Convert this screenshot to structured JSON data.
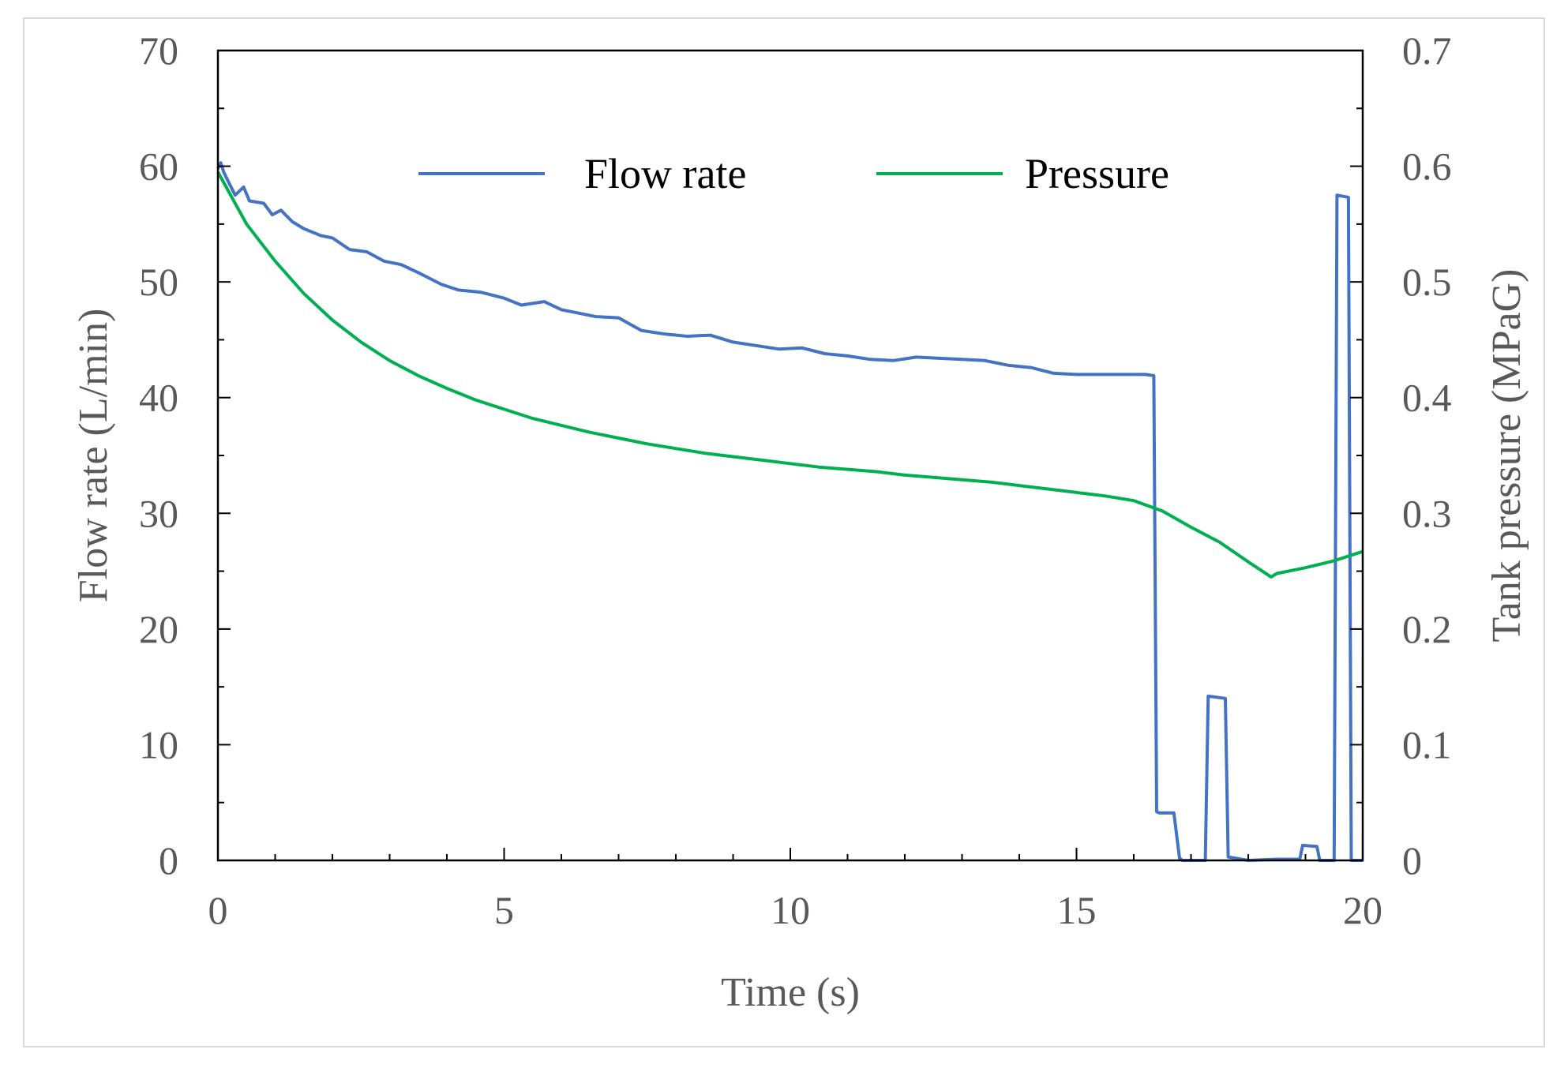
{
  "chart_data": {
    "type": "line",
    "title": "",
    "xlabel": "Time  (s)",
    "ylabel_left": "Flow rate  (L/min)",
    "ylabel_right": "Tank pressure  (MPaG)",
    "xlim": [
      0,
      20
    ],
    "ylim_left": [
      0,
      70
    ],
    "ylim_right": [
      0,
      0.7
    ],
    "x_ticks": [
      "0",
      "5",
      "10",
      "15",
      "20"
    ],
    "y_left_ticks": [
      "0",
      "10",
      "20",
      "30",
      "40",
      "50",
      "60",
      "70"
    ],
    "y_right_ticks": [
      "0",
      "0.1",
      "0.2",
      "0.3",
      "0.4",
      "0.5",
      "0.6",
      "0.7"
    ],
    "grid": false,
    "legend_position": "top-center",
    "series": [
      {
        "name": "Flow rate",
        "axis": "left",
        "color": "#4472c4",
        "x": [
          0,
          0.05,
          0.1,
          0.2,
          0.3,
          0.45,
          0.55,
          0.8,
          0.95,
          1.1,
          1.3,
          1.5,
          1.8,
          2.0,
          2.3,
          2.6,
          2.9,
          3.2,
          3.5,
          3.9,
          4.2,
          4.6,
          5.0,
          5.3,
          5.7,
          6.0,
          6.3,
          6.6,
          7.0,
          7.4,
          7.8,
          8.2,
          8.6,
          9.0,
          9.4,
          9.8,
          10.2,
          10.6,
          11.0,
          11.4,
          11.8,
          12.2,
          12.6,
          13.0,
          13.4,
          13.8,
          14.2,
          14.6,
          15.0,
          15.4,
          15.8,
          16.2,
          16.35,
          16.4,
          16.45,
          16.7,
          16.8,
          16.85,
          17.25,
          17.3,
          17.6,
          17.65,
          18.0,
          18.5,
          18.9,
          18.95,
          19.2,
          19.25,
          19.5,
          19.55,
          19.75,
          19.8,
          19.9,
          20.0
        ],
        "values": [
          59.8,
          60.3,
          59.5,
          58.5,
          57.5,
          58.2,
          57.0,
          56.8,
          55.8,
          56.2,
          55.2,
          54.6,
          54.0,
          53.8,
          52.8,
          52.6,
          51.8,
          51.5,
          50.8,
          49.8,
          49.3,
          49.1,
          48.6,
          48.0,
          48.3,
          47.6,
          47.3,
          47.0,
          46.9,
          45.8,
          45.5,
          45.3,
          45.4,
          44.8,
          44.5,
          44.2,
          44.3,
          43.8,
          43.6,
          43.3,
          43.2,
          43.5,
          43.4,
          43.3,
          43.2,
          42.8,
          42.6,
          42.1,
          42.0,
          42.0,
          42.0,
          42.0,
          41.9,
          4.2,
          4.1,
          4.1,
          0.2,
          0.0,
          0.0,
          14.2,
          14.0,
          0.3,
          0.0,
          0.1,
          0.1,
          1.3,
          1.2,
          0.0,
          0.0,
          57.5,
          57.3,
          0.0,
          0.0,
          0.0
        ]
      },
      {
        "name": "Pressure",
        "axis": "right",
        "color": "#00b050",
        "x": [
          0,
          0.5,
          1,
          1.5,
          2,
          2.5,
          3,
          3.5,
          4,
          4.5,
          5,
          5.5,
          6,
          6.5,
          7,
          7.5,
          8,
          8.5,
          9,
          9.5,
          10,
          10.5,
          11,
          11.5,
          12,
          12.5,
          13,
          13.5,
          14,
          14.5,
          15,
          15.5,
          16,
          16.5,
          17,
          17.5,
          18,
          18.4,
          18.5,
          19,
          19.5,
          20
        ],
        "values": [
          0.595,
          0.55,
          0.518,
          0.49,
          0.467,
          0.448,
          0.432,
          0.419,
          0.408,
          0.398,
          0.39,
          0.382,
          0.376,
          0.37,
          0.365,
          0.36,
          0.356,
          0.352,
          0.349,
          0.346,
          0.343,
          0.34,
          0.338,
          0.336,
          0.333,
          0.331,
          0.329,
          0.327,
          0.324,
          0.321,
          0.318,
          0.315,
          0.311,
          0.302,
          0.288,
          0.275,
          0.258,
          0.245,
          0.248,
          0.253,
          0.259,
          0.267
        ]
      }
    ]
  }
}
